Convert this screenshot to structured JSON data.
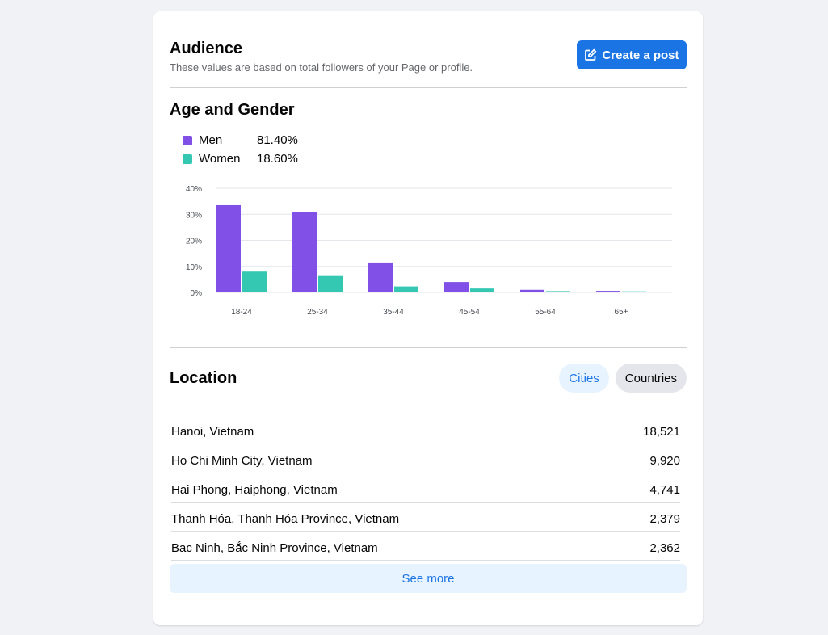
{
  "audience": {
    "title": "Audience",
    "subtitle": "These values are based on total followers of your Page or profile.",
    "create_post_label": "Create a post",
    "create_post_icon": "edit-square-icon"
  },
  "age_gender": {
    "title": "Age and Gender",
    "legend": [
      {
        "name": "Men",
        "percent": "81.40%",
        "color": "#8150e6"
      },
      {
        "name": "Women",
        "percent": "18.60%",
        "color": "#34c7b2"
      }
    ]
  },
  "chart_data": {
    "type": "bar",
    "categories": [
      "18-24",
      "25-34",
      "35-44",
      "45-54",
      "55-64",
      "65+"
    ],
    "series": [
      {
        "name": "Men",
        "color": "#8150e6",
        "values": [
          33.5,
          31,
          11.5,
          4,
          1,
          0.6
        ]
      },
      {
        "name": "Women",
        "color": "#34c7b2",
        "values": [
          8,
          6.3,
          2.3,
          1.5,
          0.5,
          0.4
        ]
      }
    ],
    "y_ticks": [
      "0%",
      "10%",
      "20%",
      "30%",
      "40%"
    ],
    "ylim": [
      0,
      40
    ],
    "grid": true,
    "legend_placement": "top-left"
  },
  "location": {
    "title": "Location",
    "tabs": [
      {
        "label": "Cities",
        "active": true
      },
      {
        "label": "Countries",
        "active": false
      }
    ],
    "rows": [
      {
        "place": "Hanoi, Vietnam",
        "count": "18,521"
      },
      {
        "place": "Ho Chi Minh City, Vietnam",
        "count": "9,920"
      },
      {
        "place": "Hai Phong, Haiphong, Vietnam",
        "count": "4,741"
      },
      {
        "place": "Thanh Hóa, Thanh Hóa Province, Vietnam",
        "count": "2,379"
      },
      {
        "place": "Bac Ninh, Bắc Ninh Province, Vietnam",
        "count": "2,362"
      }
    ],
    "see_more_label": "See more"
  }
}
